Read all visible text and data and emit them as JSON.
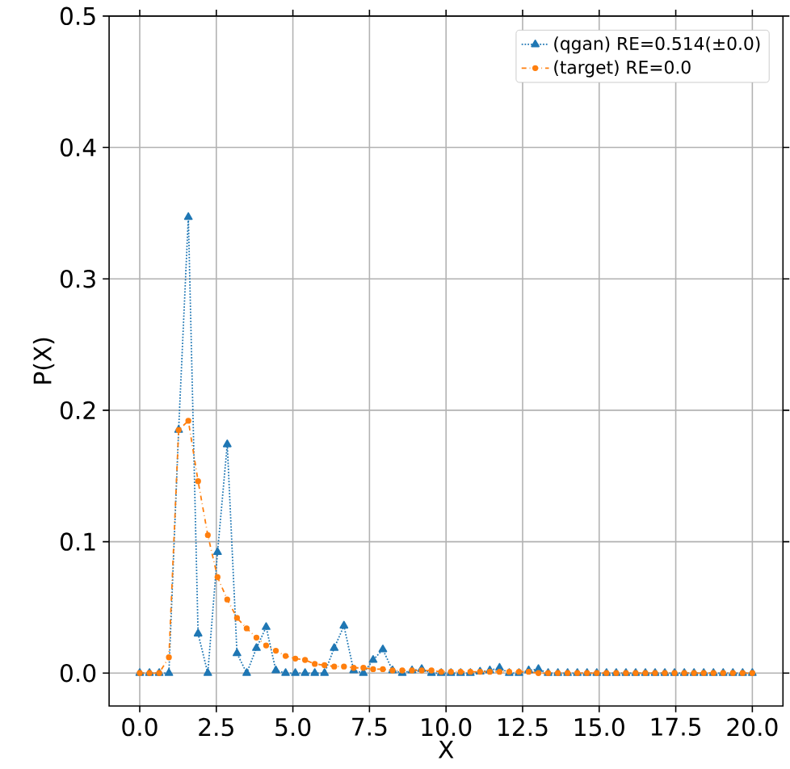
{
  "chart_data": {
    "type": "line",
    "xlabel": "X",
    "ylabel": "P(X)",
    "x": [
      0,
      0.317,
      0.635,
      0.952,
      1.27,
      1.587,
      1.905,
      2.222,
      2.54,
      2.857,
      3.175,
      3.492,
      3.81,
      4.127,
      4.444,
      4.762,
      5.079,
      5.397,
      5.714,
      6.032,
      6.349,
      6.667,
      6.984,
      7.302,
      7.619,
      7.937,
      8.254,
      8.571,
      8.889,
      9.206,
      9.524,
      9.841,
      10.159,
      10.476,
      10.794,
      11.111,
      11.429,
      11.746,
      12.063,
      12.381,
      12.698,
      13.016,
      13.333,
      13.651,
      13.968,
      14.286,
      14.603,
      14.921,
      15.238,
      15.556,
      15.873,
      16.19,
      16.508,
      16.825,
      17.143,
      17.46,
      17.778,
      18.095,
      18.413,
      18.73,
      19.048,
      19.365,
      19.683,
      20
    ],
    "series": [
      {
        "name": "(qgan) RE=0.514(±0.0)",
        "color": "#1f77b4",
        "marker": "triangle",
        "line_style": "dotted",
        "values": [
          0,
          0,
          0,
          0,
          0.185,
          0.347,
          0.03,
          0,
          0.092,
          0.174,
          0.015,
          0,
          0.019,
          0.035,
          0.002,
          0,
          0,
          0,
          0,
          0,
          0.019,
          0.036,
          0.002,
          0,
          0.01,
          0.018,
          0.002,
          0,
          0.002,
          0.003,
          0,
          0,
          0,
          0,
          0,
          0.001,
          0.002,
          0.004,
          0,
          0,
          0.002,
          0.003,
          0,
          0,
          0,
          0,
          0,
          0,
          0,
          0,
          0,
          0,
          0,
          0,
          0,
          0,
          0,
          0,
          0,
          0,
          0,
          0,
          0,
          0
        ]
      },
      {
        "name": "(target) RE=0.0",
        "color": "#ff7f0e",
        "marker": "circle",
        "line_style": "dashdot",
        "values": [
          0,
          0,
          0,
          0.012,
          0.185,
          0.192,
          0.146,
          0.105,
          0.073,
          0.056,
          0.042,
          0.034,
          0.027,
          0.021,
          0.017,
          0.013,
          0.011,
          0.01,
          0.007,
          0.006,
          0.005,
          0.005,
          0.004,
          0.004,
          0.003,
          0.003,
          0.002,
          0.002,
          0.002,
          0.002,
          0.002,
          0.001,
          0.001,
          0.001,
          0.001,
          0.001,
          0.001,
          0.001,
          0.001,
          0.001,
          0.001,
          0,
          0,
          0,
          0,
          0,
          0,
          0,
          0,
          0,
          0,
          0,
          0,
          0,
          0,
          0,
          0,
          0,
          0,
          0,
          0,
          0,
          0,
          0
        ]
      }
    ],
    "xlim": [
      -1,
      21
    ],
    "ylim": [
      -0.025,
      0.5
    ],
    "xticks": [
      {
        "value": 0,
        "label": "0.0"
      },
      {
        "value": 2.5,
        "label": "2.5"
      },
      {
        "value": 5,
        "label": "5.0"
      },
      {
        "value": 7.5,
        "label": "7.5"
      },
      {
        "value": 10,
        "label": "10.0"
      },
      {
        "value": 12.5,
        "label": "12.5"
      },
      {
        "value": 15,
        "label": "15.0"
      },
      {
        "value": 17.5,
        "label": "17.5"
      },
      {
        "value": 20,
        "label": "20.0"
      }
    ],
    "yticks": [
      {
        "value": 0,
        "label": "0.0"
      },
      {
        "value": 0.1,
        "label": "0.1"
      },
      {
        "value": 0.2,
        "label": "0.2"
      },
      {
        "value": 0.3,
        "label": "0.3"
      },
      {
        "value": 0.4,
        "label": "0.4"
      },
      {
        "value": 0.5,
        "label": "0.5"
      }
    ],
    "grid": true,
    "legend": "top right"
  }
}
